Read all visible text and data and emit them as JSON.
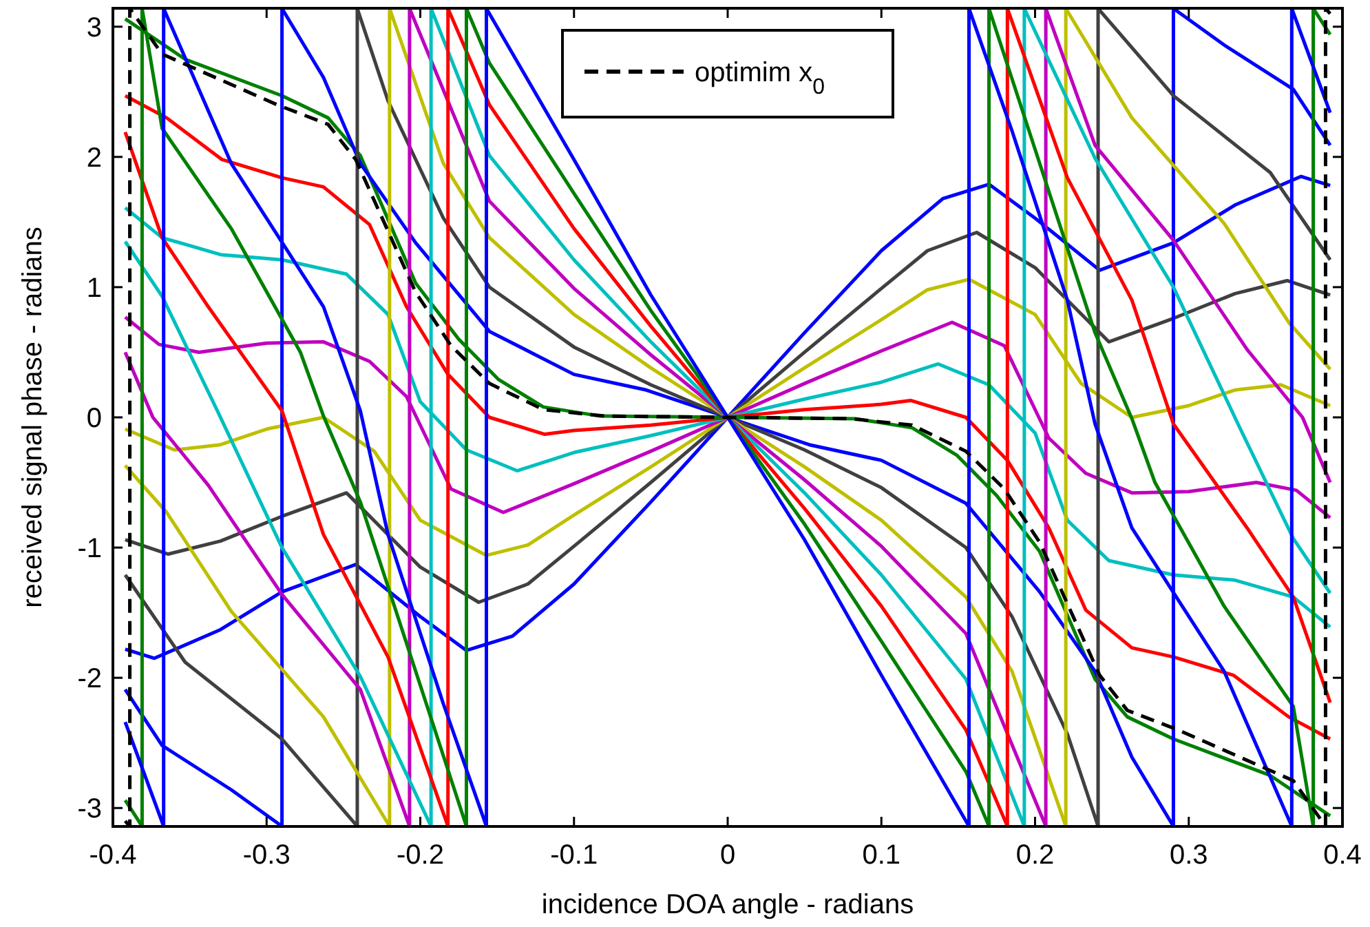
{
  "chart_data": {
    "type": "line",
    "xlabel": "incidence DOA angle - radians",
    "ylabel": "received signal phase - radians",
    "xlim": [
      -0.4,
      0.4
    ],
    "ylim": [
      -3.1416,
      3.1416
    ],
    "xticks": [
      -0.4,
      -0.3,
      -0.2,
      -0.1,
      0,
      0.1,
      0.2,
      0.3,
      0.4
    ],
    "yticks": [
      -3,
      -2,
      -1,
      0,
      1,
      2,
      3
    ],
    "grid": false,
    "legend": "top",
    "line_style": "solid",
    "marker": "none",
    "series": [
      {
        "color": "#0000ff",
        "x": [
          -0.392,
          -0.373,
          -0.33,
          -0.29,
          -0.242,
          -0.2,
          -0.17,
          -0.14,
          -0.1,
          -0.05,
          0,
          0.05,
          0.1,
          0.14,
          0.17,
          0.2,
          0.242,
          0.29,
          0.33,
          0.373,
          0.392
        ],
        "values": [
          -1.78,
          -1.85,
          -1.63,
          -1.34,
          -1.13,
          -1.53,
          -1.79,
          -1.68,
          -1.28,
          -0.65,
          0,
          0.65,
          1.28,
          1.68,
          1.79,
          1.53,
          1.13,
          1.34,
          1.63,
          1.85,
          1.78
        ]
      },
      {
        "color": "#404040",
        "x": [
          -0.392,
          -0.364,
          -0.33,
          -0.29,
          -0.248,
          -0.2,
          -0.162,
          -0.13,
          -0.1,
          -0.05,
          0,
          0.05,
          0.1,
          0.13,
          0.162,
          0.2,
          0.248,
          0.29,
          0.33,
          0.364,
          0.392
        ],
        "values": [
          -0.94,
          -1.05,
          -0.95,
          -0.76,
          -0.58,
          -1.15,
          -1.42,
          -1.28,
          -0.99,
          -0.5,
          0,
          0.5,
          0.99,
          1.28,
          1.42,
          1.15,
          0.58,
          0.76,
          0.95,
          1.05,
          0.94
        ]
      },
      {
        "color": "#bfbf00",
        "x": [
          -0.392,
          -0.36,
          -0.33,
          -0.3,
          -0.263,
          -0.23,
          -0.2,
          -0.157,
          -0.13,
          -0.1,
          -0.05,
          0,
          0.05,
          0.1,
          0.13,
          0.157,
          0.2,
          0.23,
          0.263,
          0.3,
          0.33,
          0.36,
          0.392
        ],
        "values": [
          -0.09,
          -0.25,
          -0.21,
          -0.09,
          0,
          -0.26,
          -0.79,
          -1.06,
          -0.98,
          -0.75,
          -0.38,
          0,
          0.38,
          0.75,
          0.98,
          1.06,
          0.79,
          0.26,
          0,
          0.09,
          0.21,
          0.25,
          0.09
        ]
      },
      {
        "color": "#bf00bf",
        "x": [
          -0.392,
          -0.37,
          -0.344,
          -0.3,
          -0.263,
          -0.233,
          -0.209,
          -0.18,
          -0.146,
          -0.1,
          -0.05,
          0,
          0.05,
          0.1,
          0.146,
          0.18,
          0.209,
          0.233,
          0.263,
          0.3,
          0.344,
          0.37,
          0.392
        ],
        "values": [
          0.77,
          0.56,
          0.5,
          0.57,
          0.58,
          0.43,
          0.16,
          -0.55,
          -0.73,
          -0.51,
          -0.26,
          0,
          0.26,
          0.51,
          0.73,
          0.55,
          -0.16,
          -0.43,
          -0.58,
          -0.57,
          -0.5,
          -0.56,
          -0.77
        ]
      },
      {
        "color": "#00bfbf",
        "x": [
          -0.392,
          -0.368,
          -0.33,
          -0.29,
          -0.248,
          -0.221,
          -0.2,
          -0.17,
          -0.137,
          -0.1,
          -0.05,
          0,
          0.05,
          0.1,
          0.137,
          0.17,
          0.2,
          0.221,
          0.248,
          0.29,
          0.33,
          0.368,
          0.392
        ],
        "values": [
          1.61,
          1.38,
          1.25,
          1.21,
          1.1,
          0.79,
          0.12,
          -0.25,
          -0.41,
          -0.27,
          -0.14,
          0,
          0.14,
          0.27,
          0.41,
          0.25,
          -0.12,
          -0.79,
          -1.1,
          -1.21,
          -1.25,
          -1.38,
          -1.61
        ]
      },
      {
        "color": "#ff0000",
        "x": [
          -0.392,
          -0.365,
          -0.329,
          -0.29,
          -0.263,
          -0.233,
          -0.209,
          -0.182,
          -0.155,
          -0.119,
          -0.1,
          -0.05,
          0,
          0.05,
          0.1,
          0.119,
          0.155,
          0.182,
          0.209,
          0.233,
          0.263,
          0.29,
          0.329,
          0.365,
          0.392
        ],
        "values": [
          2.47,
          2.3,
          1.98,
          1.84,
          1.77,
          1.48,
          0.85,
          0.33,
          0,
          -0.13,
          -0.1,
          -0.06,
          0,
          0.06,
          0.1,
          0.13,
          0,
          -0.33,
          -0.85,
          -1.48,
          -1.77,
          -1.84,
          -1.98,
          -2.3,
          -2.47
        ]
      },
      {
        "color": "#008000",
        "x": [
          -0.392,
          -0.353,
          -0.29,
          -0.26,
          -0.239,
          -0.203,
          -0.175,
          -0.149,
          -0.12,
          -0.083,
          0,
          0.083,
          0.12,
          0.149,
          0.175,
          0.203,
          0.239,
          0.26,
          0.29,
          0.353,
          0.392
        ],
        "values": [
          3.06,
          2.75,
          2.47,
          2.3,
          2.01,
          1.03,
          0.6,
          0.29,
          0.08,
          0.01,
          0,
          -0.01,
          -0.08,
          -0.29,
          -0.6,
          -1.03,
          -2.01,
          -2.3,
          -2.47,
          -2.75,
          -3.06
        ]
      },
      {
        "color": "#0000ff",
        "x": [
          -0.392,
          -0.368,
          -0.323,
          -0.29,
          -0.29,
          -0.263,
          -0.239,
          -0.203,
          -0.155,
          -0.1,
          -0.053,
          0,
          0.053,
          0.1,
          0.155,
          0.203,
          0.239,
          0.263,
          0.29,
          0.29,
          0.323,
          0.368,
          0.392
        ],
        "values": [
          -2.09,
          -2.52,
          -2.86,
          -3.14,
          3.14,
          2.61,
          1.95,
          1.34,
          0.66,
          0.33,
          0.21,
          0,
          -0.21,
          -0.33,
          -0.66,
          -1.34,
          -1.95,
          -2.61,
          -3.14,
          3.14,
          2.86,
          2.52,
          2.09
        ]
      },
      {
        "color": "#404040",
        "x": [
          -0.392,
          -0.353,
          -0.29,
          -0.241,
          -0.241,
          -0.221,
          -0.185,
          -0.155,
          -0.1,
          -0.05,
          0,
          0.05,
          0.1,
          0.155,
          0.185,
          0.221,
          0.241,
          0.241,
          0.29,
          0.353,
          0.392
        ],
        "values": [
          -1.21,
          -1.88,
          -2.47,
          -3.14,
          3.14,
          2.43,
          1.53,
          1.0,
          0.54,
          0.25,
          0,
          -0.25,
          -0.54,
          -1.0,
          -1.53,
          -2.43,
          -3.14,
          3.14,
          2.47,
          1.88,
          1.21
        ]
      },
      {
        "color": "#bfbf00",
        "x": [
          -0.392,
          -0.365,
          -0.323,
          -0.263,
          -0.22,
          -0.22,
          -0.185,
          -0.155,
          -0.1,
          -0.05,
          0,
          0.05,
          0.1,
          0.155,
          0.185,
          0.22,
          0.22,
          0.263,
          0.323,
          0.365,
          0.392
        ],
        "values": [
          -0.37,
          -0.73,
          -1.49,
          -2.3,
          -3.14,
          3.14,
          1.95,
          1.38,
          0.79,
          0.38,
          0,
          -0.38,
          -0.79,
          -1.38,
          -1.95,
          -3.14,
          3.14,
          2.3,
          1.49,
          0.73,
          0.37
        ]
      },
      {
        "color": "#bf00bf",
        "x": [
          -0.392,
          -0.374,
          -0.338,
          -0.29,
          -0.239,
          -0.207,
          -0.207,
          -0.155,
          -0.1,
          -0.05,
          0,
          0.05,
          0.1,
          0.155,
          0.207,
          0.207,
          0.239,
          0.29,
          0.338,
          0.374,
          0.392
        ],
        "values": [
          0.5,
          0,
          -0.52,
          -1.36,
          -2.09,
          -3.14,
          3.14,
          1.66,
          0.99,
          0.48,
          0,
          -0.48,
          -0.99,
          -1.66,
          -3.14,
          3.14,
          2.09,
          1.36,
          0.52,
          0,
          -0.5
        ]
      },
      {
        "color": "#00bfbf",
        "x": [
          -0.392,
          -0.368,
          -0.332,
          -0.29,
          -0.239,
          -0.193,
          -0.193,
          -0.155,
          -0.1,
          -0.05,
          0,
          0.05,
          0.1,
          0.155,
          0.193,
          0.193,
          0.239,
          0.29,
          0.332,
          0.368,
          0.392
        ],
        "values": [
          1.35,
          0.93,
          0.05,
          -1.0,
          -1.99,
          -3.14,
          3.14,
          2.01,
          1.21,
          0.58,
          0,
          -0.58,
          -1.21,
          -2.01,
          -3.14,
          3.14,
          1.99,
          1.0,
          -0.05,
          -0.93,
          -1.35
        ]
      },
      {
        "color": "#ff0000",
        "x": [
          -0.392,
          -0.368,
          -0.338,
          -0.29,
          -0.263,
          -0.221,
          -0.182,
          -0.182,
          -0.155,
          -0.1,
          -0.05,
          0,
          0.05,
          0.1,
          0.155,
          0.182,
          0.182,
          0.221,
          0.263,
          0.29,
          0.338,
          0.368,
          0.392
        ],
        "values": [
          2.19,
          1.38,
          0.85,
          0.05,
          -0.9,
          -1.84,
          -3.14,
          3.14,
          2.4,
          1.45,
          0.7,
          0,
          -0.7,
          -1.45,
          -2.4,
          -3.14,
          3.14,
          1.84,
          0.9,
          -0.05,
          -0.85,
          -1.38,
          -2.19
        ]
      },
      {
        "color": "#008000",
        "x": [
          -0.392,
          -0.381,
          -0.381,
          -0.368,
          -0.323,
          -0.278,
          -0.263,
          -0.239,
          -0.203,
          -0.17,
          -0.17,
          -0.155,
          -0.1,
          -0.05,
          0,
          0.05,
          0.1,
          0.155,
          0.17,
          0.17,
          0.203,
          0.239,
          0.263,
          0.278,
          0.323,
          0.368,
          0.381,
          0.381,
          0.392
        ],
        "values": [
          -2.94,
          -3.14,
          3.14,
          2.22,
          1.45,
          0.5,
          0.01,
          -0.65,
          -1.95,
          -3.14,
          3.14,
          2.72,
          1.72,
          0.82,
          0,
          -0.82,
          -1.72,
          -2.72,
          -3.14,
          3.14,
          1.95,
          0.65,
          -0.01,
          -0.5,
          -1.45,
          -2.22,
          -3.14,
          3.14,
          2.94
        ]
      },
      {
        "color": "#0000ff",
        "x": [
          -0.392,
          -0.367,
          -0.367,
          -0.323,
          -0.263,
          -0.239,
          -0.221,
          -0.185,
          -0.157,
          -0.157,
          -0.1,
          -0.05,
          0,
          0.05,
          0.1,
          0.157,
          0.157,
          0.185,
          0.221,
          0.239,
          0.263,
          0.323,
          0.367,
          0.367,
          0.392
        ],
        "values": [
          -2.34,
          -3.14,
          3.14,
          1.95,
          0.85,
          0.05,
          -0.9,
          -2.2,
          -3.14,
          3.14,
          1.98,
          0.94,
          0,
          -0.94,
          -1.98,
          -3.14,
          3.14,
          2.2,
          0.9,
          -0.05,
          -0.85,
          -1.95,
          -3.14,
          3.14,
          2.34
        ]
      },
      {
        "name": "optimim x$_{0}$",
        "color": "#000000",
        "line_style": "dashed",
        "x": [
          -0.392,
          -0.389,
          -0.389,
          -0.368,
          -0.293,
          -0.26,
          -0.242,
          -0.203,
          -0.18,
          -0.155,
          -0.12,
          -0.08,
          0,
          0.08,
          0.12,
          0.155,
          0.18,
          0.203,
          0.242,
          0.26,
          0.293,
          0.368,
          0.389,
          0.389,
          0.392
        ],
        "values": [
          -3.1,
          -3.14,
          3.14,
          2.79,
          2.4,
          2.25,
          1.98,
          0.96,
          0.55,
          0.26,
          0.06,
          0.01,
          0,
          -0.01,
          -0.06,
          -0.26,
          -0.55,
          -0.96,
          -1.98,
          -2.25,
          -2.4,
          -2.79,
          -3.14,
          3.14,
          3.1
        ]
      }
    ]
  }
}
